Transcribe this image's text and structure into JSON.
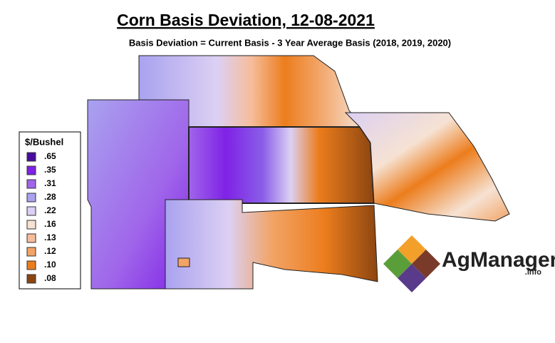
{
  "header": {
    "title": "Corn Basis Deviation, 12-08-2021",
    "subtitle": "Basis Deviation = Current Basis - 3 Year Average Basis (2018, 2019, 2020)"
  },
  "legend": {
    "title": "$/Bushel",
    "items": [
      {
        "label": ".65",
        "color": "#4a0c9e"
      },
      {
        "label": ".35",
        "color": "#7f22e6"
      },
      {
        "label": ".31",
        "color": "#a065ea"
      },
      {
        "label": ".28",
        "color": "#a9a2ef"
      },
      {
        "label": ".22",
        "color": "#dcd0f3"
      },
      {
        "label": ".16",
        "color": "#f6e2d3"
      },
      {
        "label": ".13",
        "color": "#f6bd9c"
      },
      {
        "label": ".12",
        "color": "#f2a467"
      },
      {
        "label": ".10",
        "color": "#ec7d1d"
      },
      {
        "label": ".08",
        "color": "#8b4510"
      }
    ]
  },
  "logo": {
    "name": "AgManager",
    "suffix": ".info"
  }
}
